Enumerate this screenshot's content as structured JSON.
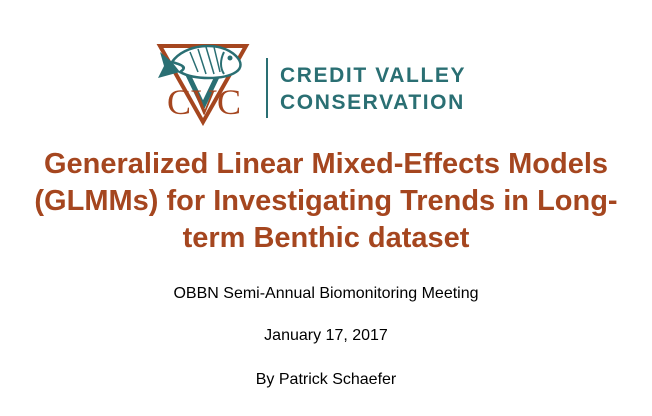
{
  "logo": {
    "abbrev": "CVC",
    "name_line1": "CREDIT VALLEY",
    "name_line2": "CONSERVATION",
    "icon": "fish-triangle-logo-icon",
    "colors": {
      "rust": "#a5461f",
      "teal": "#2a6f73"
    }
  },
  "title": {
    "line1": "Generalized Linear Mixed-Effects Models",
    "line2": "(GLMMs) for Investigating Trends in Long-",
    "line3": "term Benthic dataset"
  },
  "meeting": "OBBN Semi-Annual Biomonitoring Meeting",
  "date": "January 17, 2017",
  "author": "By Patrick Schaefer",
  "colors": {
    "title": "#a5461f",
    "body_text": "#000000",
    "background": "#ffffff"
  }
}
